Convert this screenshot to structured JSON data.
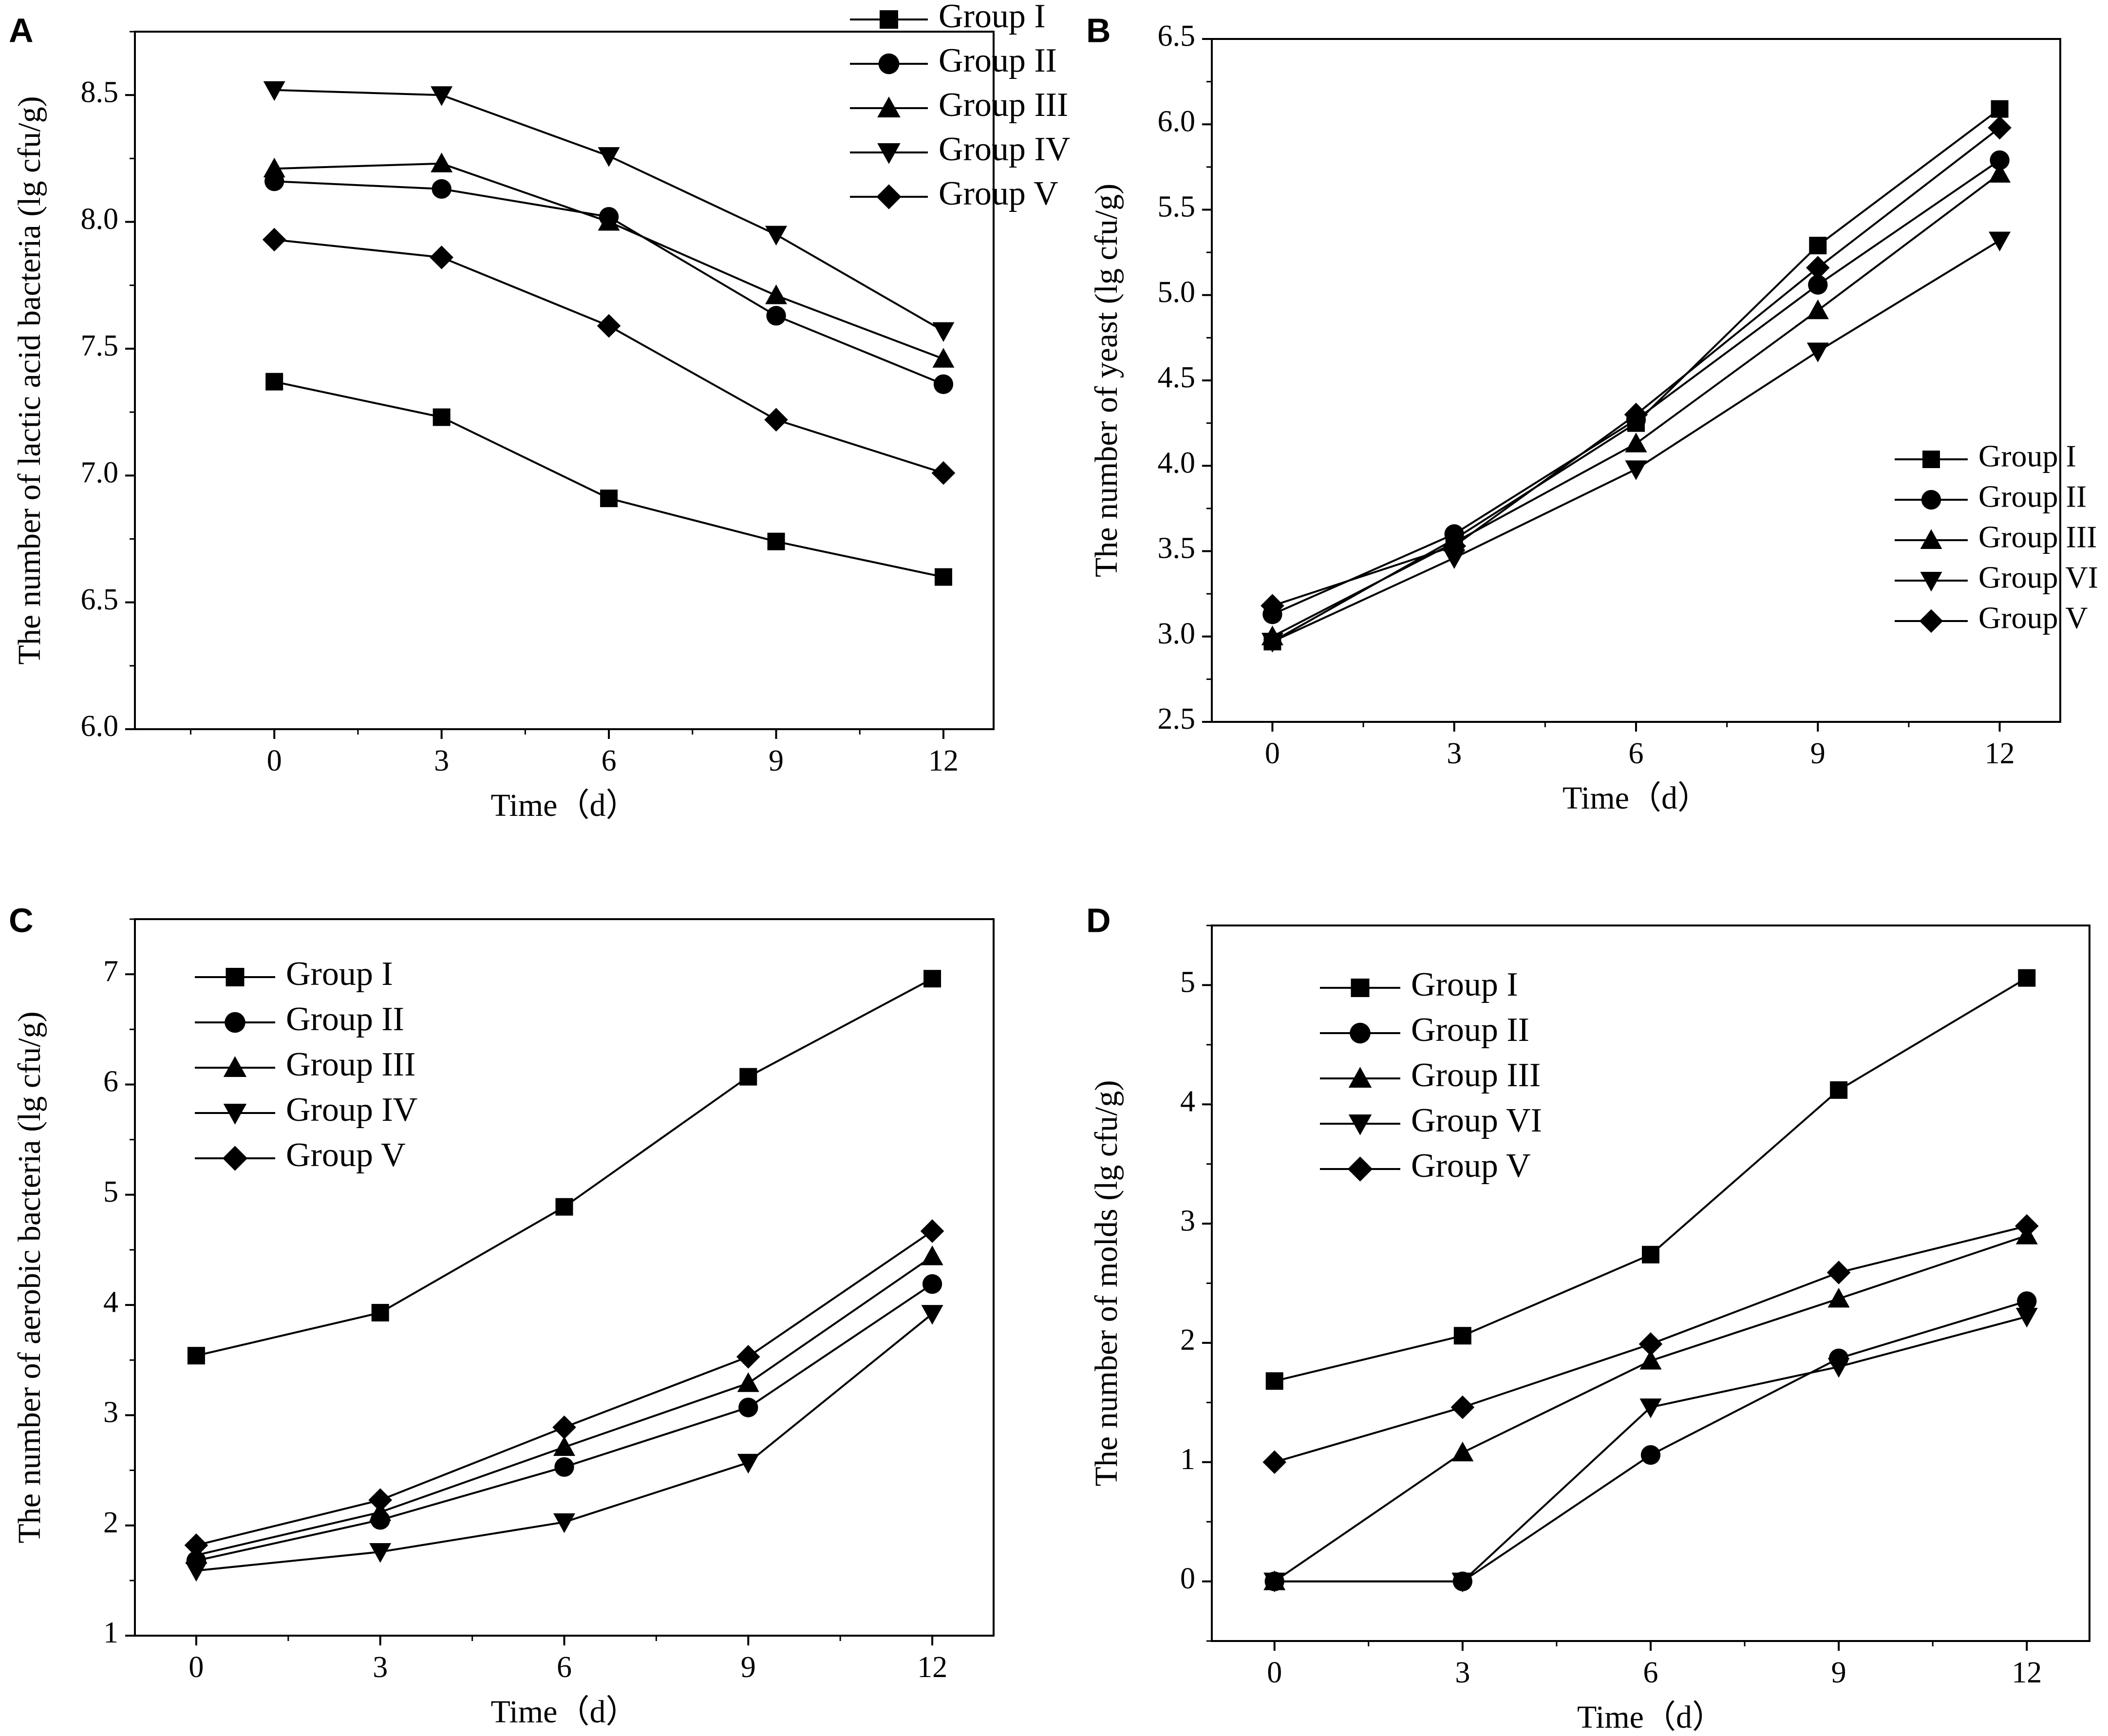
{
  "figure": {
    "panels": [
      "A",
      "B",
      "C",
      "D"
    ],
    "colors": {
      "line": "#000000",
      "background": "#ffffff"
    }
  },
  "chart_data": [
    {
      "panel": "A",
      "type": "line",
      "title": "",
      "xlabel": "Time（d）",
      "ylabel": "The number of lactic acid bacteria (lg cfu/g)",
      "x": [
        0,
        3,
        6,
        9,
        12
      ],
      "xlim": [
        -2.5,
        12.9
      ],
      "ylim": [
        6.0,
        8.75
      ],
      "xticks": [
        0,
        3,
        6,
        9,
        12
      ],
      "yticks": [
        6.0,
        6.5,
        7.0,
        7.5,
        8.0,
        8.5
      ],
      "ytick_format": "0.0",
      "legend_position": "top-right",
      "series": [
        {
          "name": "Group I",
          "marker": "square",
          "values": [
            7.37,
            7.23,
            6.91,
            6.74,
            6.6
          ]
        },
        {
          "name": "Group II",
          "marker": "circle",
          "values": [
            8.16,
            8.13,
            8.02,
            7.63,
            7.36
          ]
        },
        {
          "name": "Group III",
          "marker": "triangle-up",
          "values": [
            8.21,
            8.23,
            8.0,
            7.71,
            7.46
          ]
        },
        {
          "name": "Group IV",
          "marker": "triangle-down",
          "values": [
            8.52,
            8.5,
            8.26,
            7.95,
            7.57
          ]
        },
        {
          "name": "Group V",
          "marker": "diamond",
          "values": [
            7.93,
            7.86,
            7.59,
            7.22,
            7.01
          ]
        }
      ]
    },
    {
      "panel": "B",
      "type": "line",
      "title": "",
      "xlabel": "Time（d）",
      "ylabel": "The number of yeast (lg cfu/g)",
      "x": [
        0,
        3,
        6,
        9,
        12
      ],
      "xlim": [
        -1.0,
        13.0
      ],
      "ylim": [
        2.5,
        6.5
      ],
      "xticks": [
        0,
        3,
        6,
        9,
        12
      ],
      "yticks": [
        2.5,
        3.0,
        3.5,
        4.0,
        4.5,
        5.0,
        5.5,
        6.0,
        6.5
      ],
      "ytick_format": "0.0",
      "legend_position": "center-right",
      "series": [
        {
          "name": "Group I",
          "marker": "square",
          "values": [
            2.97,
            3.57,
            4.25,
            5.29,
            6.09
          ]
        },
        {
          "name": "Group II",
          "marker": "circle",
          "values": [
            3.13,
            3.6,
            4.27,
            5.06,
            5.79
          ]
        },
        {
          "name": "Group III",
          "marker": "triangle-up",
          "values": [
            3.0,
            3.55,
            4.13,
            4.91,
            5.71
          ]
        },
        {
          "name": "Group VI",
          "marker": "triangle-down",
          "values": [
            2.97,
            3.46,
            3.98,
            4.67,
            5.32
          ]
        },
        {
          "name": "Group V",
          "marker": "diamond",
          "values": [
            3.18,
            3.53,
            4.3,
            5.16,
            5.98
          ]
        }
      ]
    },
    {
      "panel": "C",
      "type": "line",
      "title": "",
      "xlabel": "Time（d）",
      "ylabel": "The number of aerobic bacteria (lg cfu/g)",
      "x": [
        0,
        3,
        6,
        9,
        12
      ],
      "xlim": [
        -1.0,
        13.0
      ],
      "ylim": [
        1.0,
        7.5
      ],
      "xticks": [
        0,
        3,
        6,
        9,
        12
      ],
      "yticks": [
        1,
        2,
        3,
        4,
        5,
        6,
        7
      ],
      "ytick_format": "0",
      "legend_position": "top-left",
      "series": [
        {
          "name": "Group I",
          "marker": "square",
          "values": [
            3.54,
            3.93,
            4.89,
            6.07,
            6.96
          ]
        },
        {
          "name": "Group II",
          "marker": "circle",
          "values": [
            1.68,
            2.05,
            2.53,
            3.07,
            4.19
          ]
        },
        {
          "name": "Group III",
          "marker": "triangle-up",
          "values": [
            1.73,
            2.12,
            2.71,
            3.29,
            4.44
          ]
        },
        {
          "name": "Group IV",
          "marker": "triangle-down",
          "values": [
            1.59,
            1.76,
            2.03,
            2.57,
            3.92
          ]
        },
        {
          "name": "Group V",
          "marker": "diamond",
          "values": [
            1.82,
            2.23,
            2.89,
            3.53,
            4.67
          ]
        }
      ]
    },
    {
      "panel": "D",
      "type": "line",
      "title": "",
      "xlabel": "Time（d）",
      "ylabel": "The number of molds (lg cfu/g)",
      "x": [
        0,
        3,
        6,
        9,
        12
      ],
      "xlim": [
        -1.0,
        13.0
      ],
      "ylim": [
        -0.5,
        5.5
      ],
      "xticks": [
        0,
        3,
        6,
        9,
        12
      ],
      "yticks": [
        0,
        1,
        2,
        3,
        4,
        5
      ],
      "ytick_format": "0",
      "legend_position": "top-left",
      "series": [
        {
          "name": "Group I",
          "marker": "square",
          "values": [
            1.68,
            2.06,
            2.74,
            4.12,
            5.06
          ]
        },
        {
          "name": "Group II",
          "marker": "circle",
          "values": [
            0.0,
            0.0,
            1.06,
            1.87,
            2.35
          ]
        },
        {
          "name": "Group III",
          "marker": "triangle-up",
          "values": [
            0.0,
            1.08,
            1.85,
            2.37,
            2.9
          ]
        },
        {
          "name": "Group VI",
          "marker": "triangle-down",
          "values": [
            0.0,
            0.0,
            1.46,
            1.8,
            2.22
          ]
        },
        {
          "name": "Group V",
          "marker": "diamond",
          "values": [
            1.0,
            1.46,
            1.99,
            2.59,
            2.98
          ]
        }
      ]
    }
  ]
}
